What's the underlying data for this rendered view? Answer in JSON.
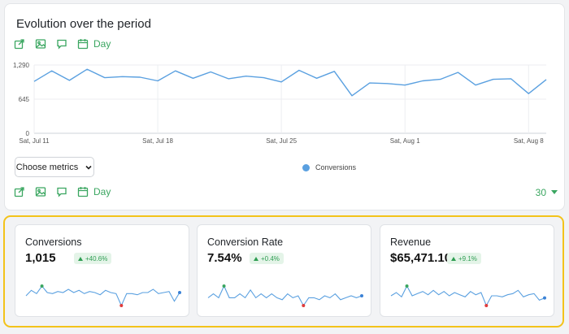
{
  "panel": {
    "title": "Evolution over the period",
    "period_label": "Day",
    "metrics_button_label": "Choose metrics",
    "page_size_value": "30"
  },
  "chart_data": {
    "type": "line",
    "title": "Evolution over the period",
    "xlabel": "",
    "ylabel": "",
    "ylim": [
      0,
      1290
    ],
    "yticks": [
      "0",
      "645",
      "1,290"
    ],
    "grid": true,
    "legend": "bottom-center",
    "series": [
      {
        "name": "Conversions",
        "color": "#5aa0e0",
        "x": [
          "2021-07-11",
          "2021-07-12",
          "2021-07-13",
          "2021-07-14",
          "2021-07-15",
          "2021-07-16",
          "2021-07-17",
          "2021-07-18",
          "2021-07-19",
          "2021-07-20",
          "2021-07-21",
          "2021-07-22",
          "2021-07-23",
          "2021-07-24",
          "2021-07-25",
          "2021-07-26",
          "2021-07-27",
          "2021-07-28",
          "2021-07-29",
          "2021-07-30",
          "2021-07-31",
          "2021-08-01",
          "2021-08-02",
          "2021-08-03",
          "2021-08-04",
          "2021-08-05",
          "2021-08-06",
          "2021-08-07",
          "2021-08-08",
          "2021-08-09"
        ],
        "values": [
          980,
          1180,
          1000,
          1210,
          1050,
          1070,
          1060,
          990,
          1180,
          1040,
          1160,
          1030,
          1080,
          1050,
          970,
          1190,
          1040,
          1170,
          710,
          950,
          940,
          910,
          990,
          1020,
          1150,
          910,
          1020,
          1030,
          750,
          1015
        ]
      }
    ],
    "x_tick_labels": [
      {
        "label": "Sat, Jul 11",
        "index": 0
      },
      {
        "label": "Sat, Jul 18",
        "index": 7
      },
      {
        "label": "Sat, Jul 25",
        "index": 14
      },
      {
        "label": "Sat, Aug 1",
        "index": 21
      },
      {
        "label": "Sat, Aug 8",
        "index": 28
      }
    ]
  },
  "cards": [
    {
      "label": "Conversions",
      "value": "1,015",
      "change": "+40.6%",
      "spark": [
        1.0,
        1.5,
        1.2,
        1.9,
        1.3,
        1.2,
        1.4,
        1.3,
        1.6,
        1.3,
        1.5,
        1.2,
        1.4,
        1.3,
        1.1,
        1.5,
        1.3,
        1.2,
        0.1,
        1.2,
        1.2,
        1.1,
        1.3,
        1.3,
        1.6,
        1.2,
        1.3,
        1.4,
        0.5,
        1.3
      ],
      "max_index": 3,
      "min_index": 18,
      "max_color": "#3aa660",
      "min_color": "#e03b3b",
      "last_color": "#3b82d6"
    },
    {
      "label": "Conversion Rate",
      "value": "7.54%",
      "change": "+0.4%",
      "spark": [
        1.0,
        1.1,
        1.0,
        1.3,
        1.0,
        1.0,
        1.1,
        1.0,
        1.2,
        1.0,
        1.1,
        1.0,
        1.1,
        1.0,
        0.95,
        1.1,
        1.0,
        1.05,
        0.8,
        1.0,
        1.0,
        0.95,
        1.05,
        1.0,
        1.1,
        0.95,
        1.0,
        1.05,
        1.0,
        1.05
      ],
      "max_index": 3,
      "min_index": 18,
      "max_color": "#3aa660",
      "min_color": "#e03b3b",
      "last_color": "#3b82d6"
    },
    {
      "label": "Revenue",
      "value": "$65,471.10",
      "change": "+9.1%",
      "spark": [
        1.0,
        1.3,
        0.9,
        1.9,
        1.0,
        1.2,
        1.4,
        1.1,
        1.5,
        1.1,
        1.4,
        1.0,
        1.3,
        1.1,
        0.9,
        1.4,
        1.1,
        1.3,
        0.1,
        1.0,
        1.0,
        0.9,
        1.1,
        1.2,
        1.5,
        0.9,
        1.1,
        1.2,
        0.6,
        0.8
      ],
      "max_index": 3,
      "min_index": 18,
      "max_color": "#3aa660",
      "min_color": "#e03b3b",
      "last_color": "#3b82d6"
    }
  ]
}
